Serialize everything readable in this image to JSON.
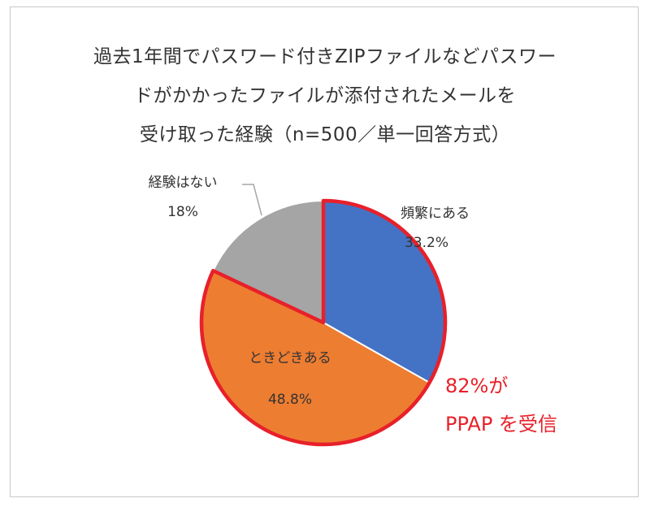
{
  "title_lines": [
    "過去1年間でパスワード付きZIPファイルなどパスワー",
    "ドがかかったファイルが添付されたメールを",
    "受け取った経験（n=500／単一回答方式）"
  ],
  "chart_data": {
    "type": "pie",
    "title": "過去1年間でパスワード付きZIPファイルなどパスワードがかかったファイルが添付されたメールを受け取った経験（n=500／単一回答方式）",
    "slices": [
      {
        "label": "頻繁にある",
        "value": 33.2,
        "value_label": "33.2%",
        "color": "#4472c4",
        "highlighted": true
      },
      {
        "label": "ときどきある",
        "value": 48.8,
        "value_label": "48.8%",
        "color": "#ed7d31",
        "highlighted": true
      },
      {
        "label": "経験はない",
        "value": 18,
        "value_label": "18%",
        "color": "#a5a5a5",
        "highlighted": false
      }
    ],
    "highlight_color": "#e8202a",
    "annotation": [
      "82%が",
      "PPAP を受信"
    ]
  }
}
